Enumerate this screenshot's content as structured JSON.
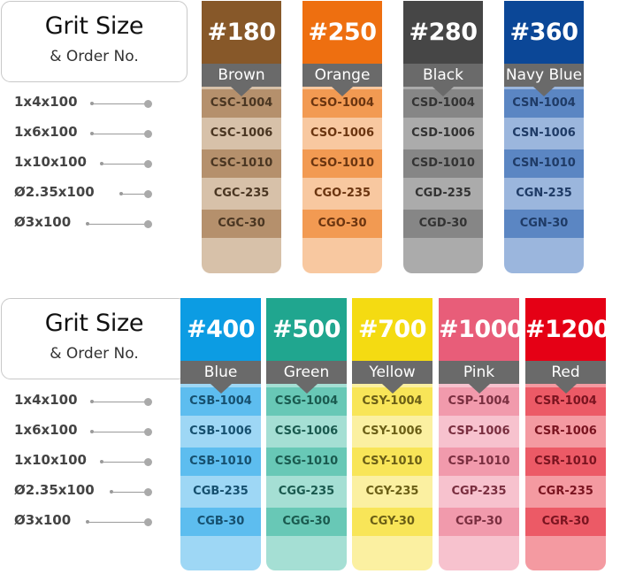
{
  "legend": {
    "title": "Grit Size",
    "subtitle": "& Order No."
  },
  "sizes": [
    "1x4x100",
    "1x6x100",
    "1x10x100",
    "Ø2.35x100",
    "Ø3x100"
  ],
  "colors": {
    "brown": {
      "dark": "#875829",
      "bar": "#6a6a6a",
      "light": "#d7c1a9",
      "mid": "#b5906c",
      "text": "#4a3622",
      "arrow": "#6a6a6a"
    },
    "orange": {
      "dark": "#ee6f10",
      "bar": "#6a6a6a",
      "light": "#f8c8a0",
      "mid": "#f29a52",
      "text": "#6b3510",
      "arrow": "#6a6a6a"
    },
    "black": {
      "dark": "#464646",
      "bar": "#6a6a6a",
      "light": "#ababab",
      "mid": "#868686",
      "text": "#333333",
      "arrow": "#6a6a6a"
    },
    "navy": {
      "dark": "#0b4797",
      "bar": "#6a6a6a",
      "light": "#9bb6dd",
      "mid": "#5b86c3",
      "text": "#1f3b66",
      "arrow": "#6a6a6a"
    },
    "blue": {
      "dark": "#0c9ce3",
      "bar": "#6a6a6a",
      "light": "#9ed7f5",
      "mid": "#5dbdef",
      "text": "#16506f",
      "arrow": "#6a6a6a"
    },
    "green": {
      "dark": "#20a68f",
      "bar": "#6a6a6a",
      "light": "#a5dfd4",
      "mid": "#68c8b6",
      "text": "#1a5a4f",
      "arrow": "#6a6a6a"
    },
    "yellow": {
      "dark": "#f4db12",
      "bar": "#6a6a6a",
      "light": "#fbf0a1",
      "mid": "#f8e558",
      "text": "#6b5f16",
      "arrow": "#6a6a6a"
    },
    "pink": {
      "dark": "#e85d79",
      "bar": "#6a6a6a",
      "light": "#f7c2ce",
      "mid": "#f19aac",
      "text": "#7a2f40",
      "arrow": "#6a6a6a"
    },
    "red": {
      "dark": "#e50015",
      "bar": "#6a6a6a",
      "light": "#f49aa1",
      "mid": "#ec5a66",
      "text": "#7a1420",
      "arrow": "#6a6a6a"
    }
  },
  "groups": [
    {
      "strips": [
        {
          "grit": "#180",
          "name": "Brown",
          "color": "brown",
          "codes": [
            "CSC-1004",
            "CSC-1006",
            "CSC-1010",
            "CGC-235",
            "CGC-30"
          ]
        },
        {
          "grit": "#250",
          "name": "Orange",
          "color": "orange",
          "codes": [
            "CSO-1004",
            "CSO-1006",
            "CSO-1010",
            "CGO-235",
            "CGO-30"
          ]
        },
        {
          "grit": "#280",
          "name": "Black",
          "color": "black",
          "codes": [
            "CSD-1004",
            "CSD-1006",
            "CSD-1010",
            "CGD-235",
            "CGD-30"
          ]
        },
        {
          "grit": "#360",
          "name": "Navy Blue",
          "color": "navy",
          "codes": [
            "CSN-1004",
            "CSN-1006",
            "CSN-1010",
            "CGN-235",
            "CGN-30"
          ]
        }
      ]
    },
    {
      "strips": [
        {
          "grit": "#400",
          "name": "Blue",
          "color": "blue",
          "codes": [
            "CSB-1004",
            "CSB-1006",
            "CSB-1010",
            "CGB-235",
            "CGB-30"
          ]
        },
        {
          "grit": "#500",
          "name": "Green",
          "color": "green",
          "codes": [
            "CSG-1004",
            "CSG-1006",
            "CSG-1010",
            "CGG-235",
            "CGG-30"
          ]
        },
        {
          "grit": "#700",
          "name": "Yellow",
          "color": "yellow",
          "codes": [
            "CSY-1004",
            "CSY-1006",
            "CSY-1010",
            "CGY-235",
            "CGY-30"
          ]
        },
        {
          "grit": "#1000",
          "name": "Pink",
          "color": "pink",
          "codes": [
            "CSP-1004",
            "CSP-1006",
            "CSP-1010",
            "CGP-235",
            "CGP-30"
          ]
        },
        {
          "grit": "#1200",
          "name": "Red",
          "color": "red",
          "codes": [
            "CSR-1004",
            "CSR-1006",
            "CSR-1010",
            "CGR-235",
            "CGR-30"
          ]
        }
      ]
    }
  ]
}
